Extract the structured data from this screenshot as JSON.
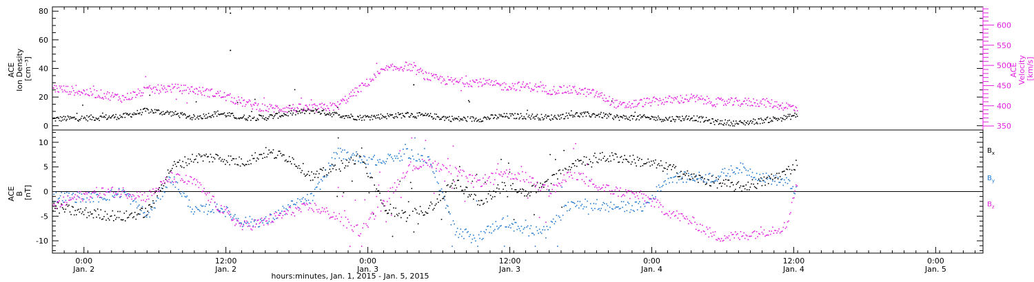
{
  "colors": {
    "density": "#000000",
    "velocity": "#e31ee0",
    "bx": "#000000",
    "by": "#1f78d1",
    "bz": "#e31ee0"
  },
  "x_axis": {
    "title": "hours:minutes, Jan. 1, 2015 - Jan. 5, 2015",
    "ticks": [
      {
        "time": "0:00",
        "date": "Jan. 2"
      },
      {
        "time": "12:00",
        "date": "Jan. 2"
      },
      {
        "time": "0:00",
        "date": "Jan. 3"
      },
      {
        "time": "12:00",
        "date": "Jan. 3"
      },
      {
        "time": "0:00",
        "date": "Jan. 4"
      },
      {
        "time": "12:00",
        "date": "Jan. 4"
      },
      {
        "time": "0:00",
        "date": "Jan. 5"
      }
    ]
  },
  "chart_data": [
    {
      "type": "scatter",
      "panel": "top",
      "xlim": [
        "2015-01-01 21:20",
        "2015-01-05 04:00"
      ],
      "left_axis": {
        "label_lines": [
          "ACE",
          "Ion Density",
          "[cm⁻³]"
        ],
        "ylim": [
          -3,
          83
        ],
        "ticks": [
          "0",
          "20",
          "40",
          "60",
          "80"
        ]
      },
      "right_axis": {
        "label_lines": [
          "ACE",
          "Velocity",
          "[km/s]"
        ],
        "ylim": [
          340,
          645
        ],
        "ticks": [
          "350",
          "400",
          "450",
          "500",
          "550",
          "600"
        ]
      },
      "series": [
        {
          "name": "",
          "axis": "left",
          "x_hours": [
            0,
            4,
            6,
            8,
            10,
            12,
            14,
            16,
            18,
            20,
            22,
            24,
            26,
            28,
            30,
            32,
            34,
            36,
            38,
            40,
            42,
            44,
            46,
            48,
            50,
            52,
            54,
            56,
            58,
            60,
            62,
            63
          ],
          "values": [
            5,
            6,
            7,
            11,
            9,
            6,
            9,
            6,
            6,
            9,
            11,
            8,
            6,
            7,
            8,
            7,
            5,
            5,
            7,
            7,
            6,
            8,
            8,
            6,
            6,
            5,
            6,
            3,
            2,
            4,
            6,
            8
          ]
        },
        {
          "name": "",
          "axis": "right",
          "x_hours": [
            0,
            4,
            6,
            8,
            10,
            12,
            14,
            16,
            18,
            20,
            22,
            24,
            26,
            28,
            30,
            32,
            34,
            36,
            38,
            40,
            42,
            44,
            46,
            48,
            50,
            52,
            54,
            56,
            58,
            60,
            62,
            63
          ],
          "values": [
            445,
            430,
            420,
            440,
            445,
            440,
            430,
            410,
            395,
            395,
            395,
            400,
            445,
            490,
            500,
            470,
            460,
            460,
            450,
            450,
            440,
            440,
            430,
            400,
            410,
            415,
            420,
            410,
            410,
            410,
            400,
            395
          ]
        }
      ],
      "outliers": [
        {
          "x_hours": 15.0,
          "value": 79,
          "axis": "left"
        },
        {
          "x_hours": 15.0,
          "value": 53,
          "axis": "left"
        },
        {
          "x_hours": 30.5,
          "value": 29,
          "axis": "left"
        }
      ]
    },
    {
      "type": "scatter",
      "panel": "bottom",
      "xlim": [
        "2015-01-01 21:20",
        "2015-01-05 04:00"
      ],
      "left_axis": {
        "label_lines": [
          "ACE",
          "B",
          "[nT]"
        ],
        "ylim": [
          -12.5,
          12.5
        ],
        "ticks": [
          "-10",
          "-5",
          "0",
          "5",
          "10"
        ]
      },
      "zero_line": true,
      "series": [
        {
          "name": "Bx",
          "x_hours": [
            0,
            2,
            4,
            6,
            8,
            10,
            12,
            14,
            16,
            18,
            20,
            22,
            24,
            26,
            28,
            30,
            32,
            34,
            36,
            38,
            40,
            42,
            44,
            46,
            48,
            50,
            52,
            54,
            56,
            58,
            60,
            62,
            63
          ],
          "values": [
            -3,
            -4,
            -4.5,
            -5,
            -4,
            5,
            7,
            7,
            6,
            8,
            7,
            3,
            5,
            7,
            -3,
            -5,
            -3,
            2,
            -2,
            1,
            0,
            2,
            6,
            7,
            7,
            6,
            5,
            3,
            2,
            1,
            2,
            4,
            6
          ]
        },
        {
          "name": "By",
          "x_hours": [
            0,
            2,
            4,
            6,
            8,
            10,
            12,
            14,
            16,
            18,
            20,
            22,
            24,
            26,
            28,
            30,
            32,
            34,
            36,
            38,
            40,
            42,
            44,
            46,
            48,
            50,
            52,
            54,
            56,
            58,
            60,
            62,
            63
          ],
          "values": [
            -1,
            -1,
            -1,
            0,
            -5,
            3,
            -4,
            -3,
            -6,
            -6,
            -3,
            -1,
            8,
            7,
            6,
            8,
            6,
            -8,
            -9,
            -6,
            -8,
            -7,
            -2,
            -3,
            -3,
            -3,
            3,
            3,
            3,
            5,
            3,
            2,
            0
          ]
        },
        {
          "name": "Bz",
          "x_hours": [
            0,
            2,
            4,
            6,
            8,
            10,
            12,
            14,
            16,
            18,
            20,
            22,
            24,
            26,
            28,
            30,
            32,
            34,
            36,
            38,
            40,
            42,
            44,
            46,
            48,
            50,
            52,
            54,
            56,
            58,
            60,
            62,
            63
          ],
          "values": [
            -3,
            -1,
            0,
            0,
            -1,
            3,
            2,
            -3,
            -7,
            -6,
            -4,
            -3,
            -5,
            -8,
            -2,
            5,
            6,
            4,
            2,
            4,
            3,
            0,
            4,
            1,
            0,
            -1,
            -4,
            -6,
            -9,
            -9,
            -8,
            -7,
            3
          ]
        }
      ]
    }
  ],
  "legend": [
    {
      "base": "B",
      "sub": "x",
      "series": "bx"
    },
    {
      "base": "B",
      "sub": "y",
      "series": "by"
    },
    {
      "base": "B",
      "sub": "z",
      "series": "bz"
    }
  ]
}
